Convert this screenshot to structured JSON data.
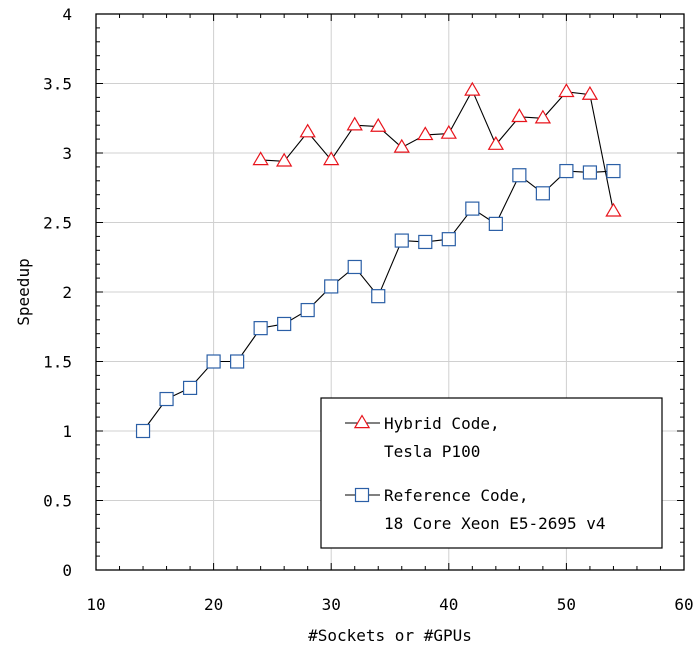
{
  "chart_data": {
    "type": "line",
    "xlabel": "#Sockets or #GPUs",
    "ylabel": "Speedup",
    "xlim": [
      10,
      60
    ],
    "ylim": [
      0,
      4
    ],
    "xticks": [
      10,
      20,
      30,
      40,
      50,
      60
    ],
    "yticks": [
      0,
      0.5,
      1,
      1.5,
      2,
      2.5,
      3,
      3.5,
      4
    ],
    "ytick_labels": [
      "0",
      "0.5",
      "1",
      "1.5",
      "2",
      "2.5",
      "3",
      "3.5",
      "4"
    ],
    "grid": true,
    "legend_position": "bottom-right",
    "series": [
      {
        "name": "Hybrid Code, Tesla P100",
        "legend_lines": [
          "Hybrid Code,",
          "Tesla P100"
        ],
        "marker": "triangle",
        "color": "#e8141c",
        "x": [
          24,
          26,
          28,
          30,
          32,
          34,
          36,
          38,
          40,
          42,
          44,
          46,
          48,
          50,
          52,
          54
        ],
        "y": [
          2.95,
          2.94,
          3.15,
          2.95,
          3.2,
          3.19,
          3.04,
          3.13,
          3.14,
          3.45,
          3.06,
          3.26,
          3.25,
          3.44,
          3.42,
          2.58
        ]
      },
      {
        "name": "Reference Code, 18 Core Xeon E5-2695 v4",
        "legend_lines": [
          "Reference Code,",
          "18 Core Xeon E5-2695 v4"
        ],
        "marker": "square",
        "color": "#2b5fa6",
        "x": [
          14,
          16,
          18,
          20,
          22,
          24,
          26,
          28,
          30,
          32,
          34,
          36,
          38,
          40,
          42,
          44,
          46,
          48,
          50,
          52,
          54
        ],
        "y": [
          1.0,
          1.23,
          1.31,
          1.5,
          1.5,
          1.74,
          1.77,
          1.87,
          2.04,
          2.18,
          1.97,
          2.37,
          2.36,
          2.38,
          2.6,
          2.49,
          2.84,
          2.71,
          2.87,
          2.86,
          2.87
        ]
      }
    ]
  }
}
